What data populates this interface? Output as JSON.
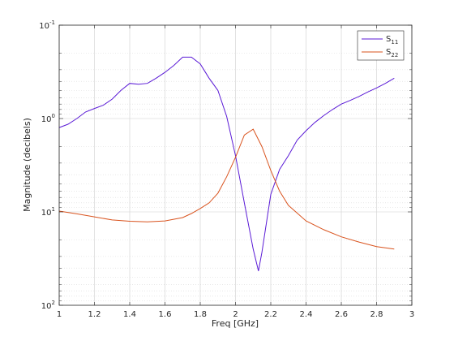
{
  "chart_data": {
    "type": "line",
    "xlabel": "Freq [GHz]",
    "ylabel": "Magnitude (decibels)",
    "xlim": [
      1,
      3
    ],
    "ylim_exp": [
      -1,
      2
    ],
    "y_scale": "log-reversed",
    "grid": true,
    "minor_grid": true,
    "legend_position": "top-right",
    "x_ticks": [
      "1",
      "1.2",
      "1.4",
      "1.6",
      "1.8",
      "2",
      "2.2",
      "2.4",
      "2.6",
      "2.8",
      "3"
    ],
    "y_ticks": [
      {
        "exp": -1,
        "base": "10",
        "sup": "-1"
      },
      {
        "exp": 0,
        "base": "10",
        "sup": "0"
      },
      {
        "exp": 1,
        "base": "10",
        "sup": "1"
      },
      {
        "exp": 2,
        "base": "10",
        "sup": "2"
      }
    ],
    "series": [
      {
        "name": "S11",
        "name_base": "S",
        "name_sub": "11",
        "color": "#5a1ad6",
        "x": [
          1.0,
          1.05,
          1.1,
          1.15,
          1.2,
          1.25,
          1.3,
          1.35,
          1.4,
          1.45,
          1.5,
          1.55,
          1.6,
          1.65,
          1.7,
          1.75,
          1.8,
          1.85,
          1.9,
          1.95,
          2.0,
          2.05,
          2.1,
          2.13,
          2.15,
          2.2,
          2.25,
          2.3,
          2.35,
          2.4,
          2.45,
          2.5,
          2.55,
          2.6,
          2.65,
          2.7,
          2.75,
          2.8,
          2.85,
          2.9
        ],
        "y": [
          1.25,
          1.15,
          1.0,
          0.85,
          0.78,
          0.72,
          0.62,
          0.5,
          0.42,
          0.43,
          0.42,
          0.37,
          0.32,
          0.27,
          0.22,
          0.22,
          0.26,
          0.37,
          0.5,
          0.95,
          2.5,
          8.0,
          25.0,
          43.0,
          27.0,
          6.5,
          3.5,
          2.5,
          1.7,
          1.35,
          1.1,
          0.93,
          0.8,
          0.7,
          0.64,
          0.58,
          0.52,
          0.47,
          0.42,
          0.37
        ]
      },
      {
        "name": "S22",
        "name_base": "S",
        "name_sub": "22",
        "color": "#d9531e",
        "x": [
          1.0,
          1.1,
          1.2,
          1.3,
          1.4,
          1.5,
          1.6,
          1.7,
          1.75,
          1.8,
          1.85,
          1.9,
          1.95,
          2.0,
          2.05,
          2.1,
          2.15,
          2.2,
          2.25,
          2.3,
          2.4,
          2.5,
          2.6,
          2.7,
          2.8,
          2.9
        ],
        "y": [
          9.8,
          10.5,
          11.3,
          12.2,
          12.6,
          12.8,
          12.5,
          11.5,
          10.4,
          9.2,
          8.0,
          6.3,
          4.2,
          2.6,
          1.5,
          1.3,
          2.0,
          3.6,
          6.0,
          8.5,
          12.5,
          15.5,
          18.5,
          21.0,
          23.5,
          25.0
        ]
      }
    ]
  }
}
